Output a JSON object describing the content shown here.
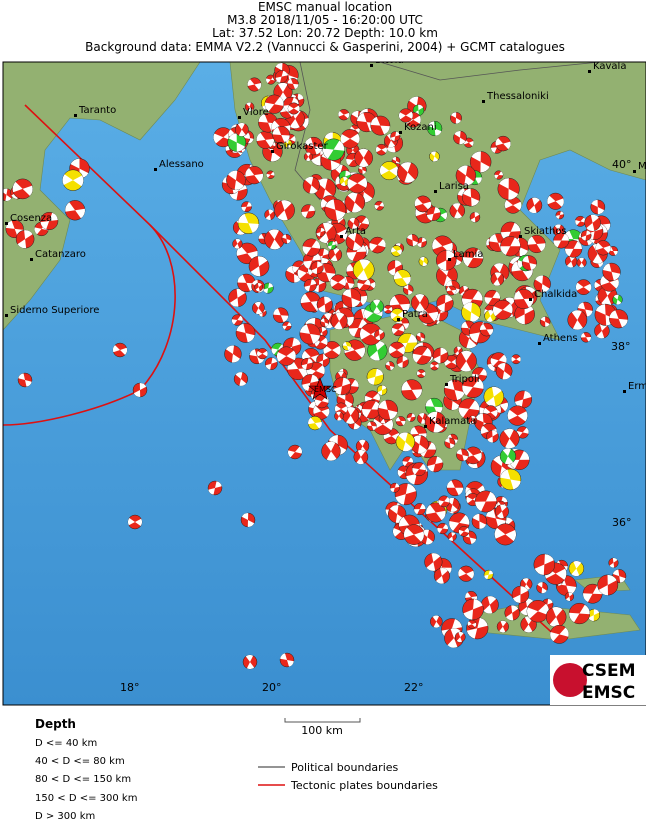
{
  "header": {
    "lines": [
      "EMSC manual location",
      "M3.8  2018/11/05 - 16:20:00 UTC",
      "Lat: 37.52    Lon: 20.72    Depth:  10.0 km",
      "Background data: EMMA V2.2 (Vannucci & Gasperini, 2004) + GCMT catalogues"
    ]
  },
  "map": {
    "cities": [
      "Bitola",
      "Kavala",
      "Taranto",
      "Vlore",
      "Thessaloniki",
      "Kozani",
      "Girokaster",
      "Alessano",
      "Larisa",
      "Cosenza",
      "Arta",
      "Skiathos",
      "Catanzaro",
      "Lamia",
      "Chalkida",
      "Siderno Superiore",
      "Patra",
      "Athens",
      "Tripoli",
      "Kalamata",
      "Erm",
      "M"
    ],
    "epicenter_label": "EMSC",
    "lat_labels": [
      "40°",
      "38°",
      "36°"
    ],
    "lon_labels": [
      "18°",
      "20°",
      "22°"
    ],
    "scale_label": "100 km"
  },
  "legend": {
    "title": "Depth",
    "depth_classes": [
      "D <= 40 km",
      "40 < D <= 80 km",
      "80 < D <= 150 km",
      "150 < D <= 300 km",
      "D > 300 km"
    ],
    "lines": [
      "Political boundaries",
      "Tectonic plates boundaries"
    ]
  },
  "logo": {
    "top": "CSEM",
    "bottom": "EMSC"
  }
}
